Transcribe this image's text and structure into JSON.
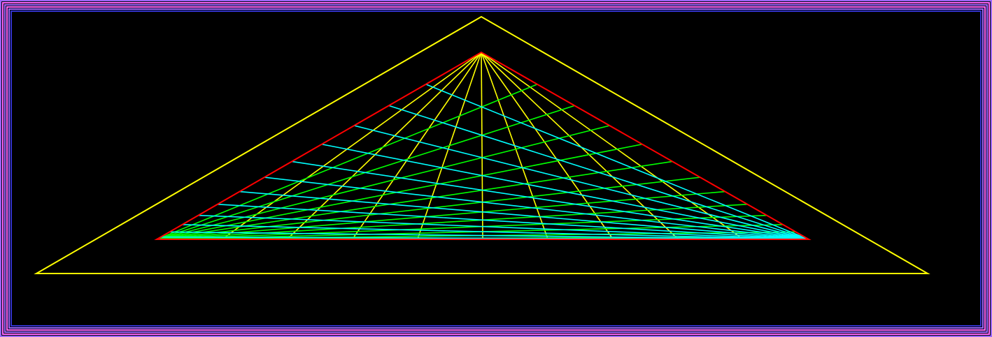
{
  "colors": {
    "background": "#000000",
    "frame_outer": "#9966ff",
    "frame_mid": "#ff66ff",
    "frame_inner": "#3333cc",
    "outer_triangle": "#ffff00",
    "inner_triangle": "#ff0000",
    "radial_lines": "#ffff00",
    "left_fan_lines": "#00ff00",
    "right_fan_lines": "#00ffff"
  },
  "figure": {
    "radial_line_count": 10,
    "left_fan_line_count": 12,
    "right_fan_line_count": 12
  }
}
